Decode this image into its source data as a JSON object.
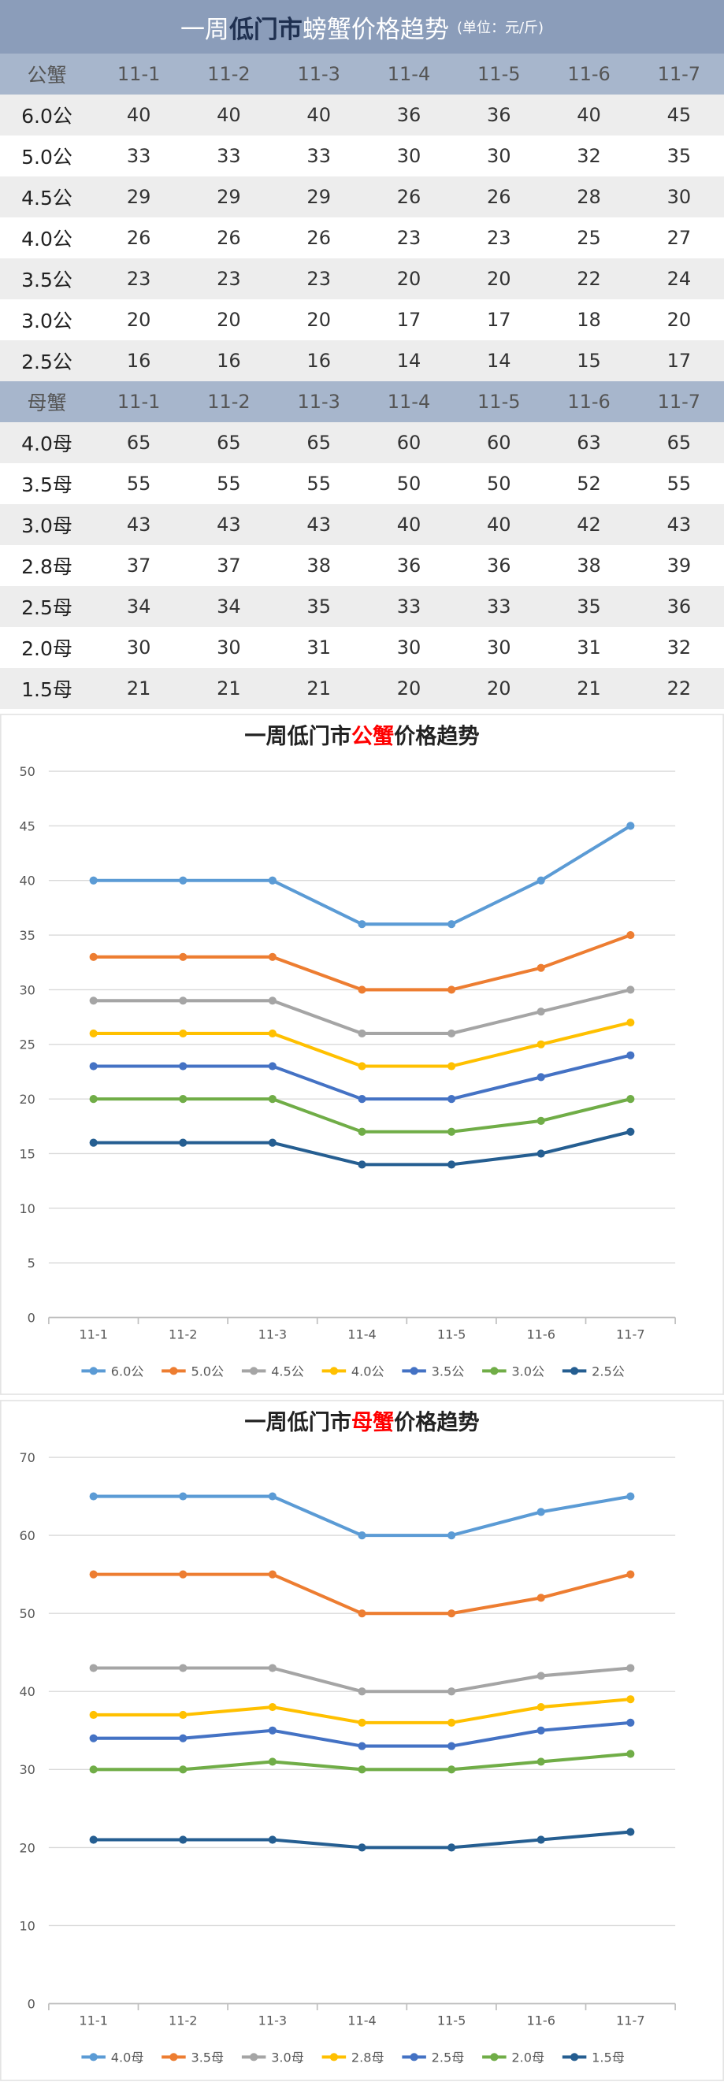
{
  "header": {
    "title": [
      "一周",
      "低门市",
      "螃蟹价格趋势"
    ],
    "unit": "(单位：元/斤)"
  },
  "table": {
    "sections": [
      {
        "columns": [
          "公蟹",
          "11-1",
          "11-2",
          "11-3",
          "11-4",
          "11-5",
          "11-6",
          "11-7"
        ],
        "rows": [
          [
            "6.0公",
            "40",
            "40",
            "40",
            "36",
            "36",
            "40",
            "45"
          ],
          [
            "5.0公",
            "33",
            "33",
            "33",
            "30",
            "30",
            "32",
            "35"
          ],
          [
            "4.5公",
            "29",
            "29",
            "29",
            "26",
            "26",
            "28",
            "30"
          ],
          [
            "4.0公",
            "26",
            "26",
            "26",
            "23",
            "23",
            "25",
            "27"
          ],
          [
            "3.5公",
            "23",
            "23",
            "23",
            "20",
            "20",
            "22",
            "24"
          ],
          [
            "3.0公",
            "20",
            "20",
            "20",
            "17",
            "17",
            "18",
            "20"
          ],
          [
            "2.5公",
            "16",
            "16",
            "16",
            "14",
            "14",
            "15",
            "17"
          ]
        ]
      },
      {
        "columns": [
          "母蟹",
          "11-1",
          "11-2",
          "11-3",
          "11-4",
          "11-5",
          "11-6",
          "11-7"
        ],
        "rows": [
          [
            "4.0母",
            "65",
            "65",
            "65",
            "60",
            "60",
            "63",
            "65"
          ],
          [
            "3.5母",
            "55",
            "55",
            "55",
            "50",
            "50",
            "52",
            "55"
          ],
          [
            "3.0母",
            "43",
            "43",
            "43",
            "40",
            "40",
            "42",
            "43"
          ],
          [
            "2.8母",
            "37",
            "37",
            "38",
            "36",
            "36",
            "38",
            "39"
          ],
          [
            "2.5母",
            "34",
            "34",
            "35",
            "33",
            "33",
            "35",
            "36"
          ],
          [
            "2.0母",
            "30",
            "30",
            "31",
            "30",
            "30",
            "31",
            "32"
          ],
          [
            "1.5母",
            "21",
            "21",
            "21",
            "20",
            "20",
            "21",
            "22"
          ]
        ]
      }
    ]
  },
  "chart_data": [
    {
      "type": "line",
      "title": [
        "一周低门市",
        "公蟹",
        "价格趋势"
      ],
      "categories": [
        "11-1",
        "11-2",
        "11-3",
        "11-4",
        "11-5",
        "11-6",
        "11-7"
      ],
      "ylim": [
        0,
        50
      ],
      "yticks": [
        0,
        5,
        10,
        15,
        20,
        25,
        30,
        35,
        40,
        45,
        50
      ],
      "grid": true,
      "legend": "bottom",
      "series": [
        {
          "name": "6.0公",
          "color": "#5b9bd5",
          "values": [
            40,
            40,
            40,
            36,
            36,
            40,
            45
          ]
        },
        {
          "name": "5.0公",
          "color": "#ed7d31",
          "values": [
            33,
            33,
            33,
            30,
            30,
            32,
            35
          ]
        },
        {
          "name": "4.5公",
          "color": "#a5a5a5",
          "values": [
            29,
            29,
            29,
            26,
            26,
            28,
            30
          ]
        },
        {
          "name": "4.0公",
          "color": "#ffc000",
          "values": [
            26,
            26,
            26,
            23,
            23,
            25,
            27
          ]
        },
        {
          "name": "3.5公",
          "color": "#4472c4",
          "values": [
            23,
            23,
            23,
            20,
            20,
            22,
            24
          ]
        },
        {
          "name": "3.0公",
          "color": "#70ad47",
          "values": [
            20,
            20,
            20,
            17,
            17,
            18,
            20
          ]
        },
        {
          "name": "2.5公",
          "color": "#255e91",
          "values": [
            16,
            16,
            16,
            14,
            14,
            15,
            17
          ]
        }
      ]
    },
    {
      "type": "line",
      "title": [
        "一周低门市",
        "母蟹",
        "价格趋势"
      ],
      "categories": [
        "11-1",
        "11-2",
        "11-3",
        "11-4",
        "11-5",
        "11-6",
        "11-7"
      ],
      "ylim": [
        0,
        70
      ],
      "yticks": [
        0,
        10,
        20,
        30,
        40,
        50,
        60,
        70
      ],
      "grid": true,
      "legend": "bottom",
      "series": [
        {
          "name": "4.0母",
          "color": "#5b9bd5",
          "values": [
            65,
            65,
            65,
            60,
            60,
            63,
            65
          ]
        },
        {
          "name": "3.5母",
          "color": "#ed7d31",
          "values": [
            55,
            55,
            55,
            50,
            50,
            52,
            55
          ]
        },
        {
          "name": "3.0母",
          "color": "#a5a5a5",
          "values": [
            43,
            43,
            43,
            40,
            40,
            42,
            43
          ]
        },
        {
          "name": "2.8母",
          "color": "#ffc000",
          "values": [
            37,
            37,
            38,
            36,
            36,
            38,
            39
          ]
        },
        {
          "name": "2.5母",
          "color": "#4472c4",
          "values": [
            34,
            34,
            35,
            33,
            33,
            35,
            36
          ]
        },
        {
          "name": "2.0母",
          "color": "#70ad47",
          "values": [
            30,
            30,
            31,
            30,
            30,
            31,
            32
          ]
        },
        {
          "name": "1.5母",
          "color": "#255e91",
          "values": [
            21,
            21,
            21,
            20,
            20,
            21,
            22
          ]
        }
      ]
    }
  ]
}
